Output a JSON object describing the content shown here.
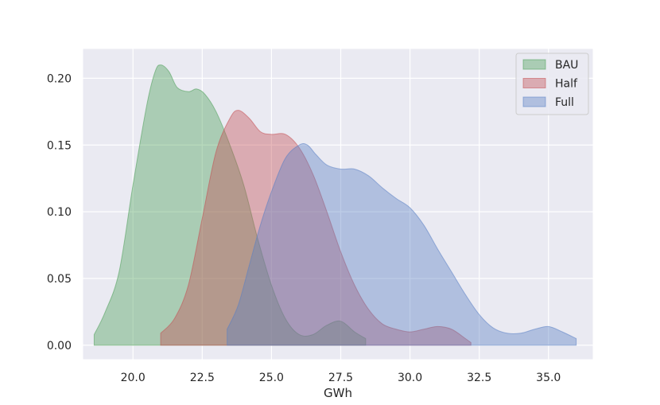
{
  "chart_data": {
    "type": "area",
    "title": "",
    "xlabel": "GWh",
    "ylabel": "",
    "xlim": [
      18.2,
      36.6
    ],
    "ylim": [
      -0.0105,
      0.222
    ],
    "xticks": [
      20.0,
      22.5,
      25.0,
      27.5,
      30.0,
      32.5,
      35.0
    ],
    "xtick_labels": [
      "20.0",
      "22.5",
      "25.0",
      "27.5",
      "30.0",
      "32.5",
      "35.0"
    ],
    "yticks": [
      0.0,
      0.05,
      0.1,
      0.15,
      0.2
    ],
    "ytick_labels": [
      "0.00",
      "0.05",
      "0.10",
      "0.15",
      "0.20"
    ],
    "grid": true,
    "legend_position": "top-right",
    "series": [
      {
        "name": "BAU",
        "color": "#4c9f58",
        "x": [
          18.6,
          19.0,
          19.5,
          20.0,
          20.5,
          20.8,
          21.0,
          21.3,
          21.6,
          22.0,
          22.3,
          22.6,
          23.0,
          23.5,
          24.0,
          24.5,
          25.0,
          25.5,
          26.0,
          26.5,
          27.0,
          27.5,
          28.0,
          28.4
        ],
        "y": [
          0.008,
          0.025,
          0.055,
          0.12,
          0.18,
          0.205,
          0.21,
          0.205,
          0.193,
          0.19,
          0.192,
          0.188,
          0.175,
          0.15,
          0.12,
          0.08,
          0.045,
          0.02,
          0.008,
          0.008,
          0.015,
          0.018,
          0.01,
          0.005
        ]
      },
      {
        "name": "Half",
        "color": "#c44e52",
        "x": [
          21.0,
          21.5,
          22.0,
          22.5,
          23.0,
          23.5,
          23.8,
          24.2,
          24.6,
          25.0,
          25.5,
          26.0,
          26.5,
          27.0,
          27.5,
          28.0,
          28.5,
          29.0,
          29.5,
          30.0,
          30.5,
          31.0,
          31.5,
          32.0,
          32.2
        ],
        "y": [
          0.009,
          0.02,
          0.045,
          0.095,
          0.145,
          0.17,
          0.176,
          0.17,
          0.16,
          0.158,
          0.158,
          0.148,
          0.128,
          0.1,
          0.07,
          0.045,
          0.027,
          0.016,
          0.012,
          0.01,
          0.012,
          0.014,
          0.012,
          0.005,
          0.002
        ]
      },
      {
        "name": "Full",
        "color": "#5a7fc4",
        "x": [
          23.4,
          23.8,
          24.2,
          24.6,
          25.0,
          25.5,
          26.0,
          26.3,
          26.6,
          27.0,
          27.5,
          28.0,
          28.5,
          29.0,
          29.5,
          30.0,
          30.5,
          31.0,
          31.5,
          32.0,
          32.5,
          33.0,
          33.5,
          34.0,
          34.5,
          35.0,
          35.5,
          36.0
        ],
        "y": [
          0.012,
          0.03,
          0.06,
          0.09,
          0.115,
          0.14,
          0.15,
          0.15,
          0.143,
          0.135,
          0.132,
          0.132,
          0.127,
          0.118,
          0.11,
          0.103,
          0.09,
          0.072,
          0.055,
          0.038,
          0.023,
          0.013,
          0.009,
          0.009,
          0.012,
          0.014,
          0.01,
          0.005
        ]
      }
    ]
  }
}
